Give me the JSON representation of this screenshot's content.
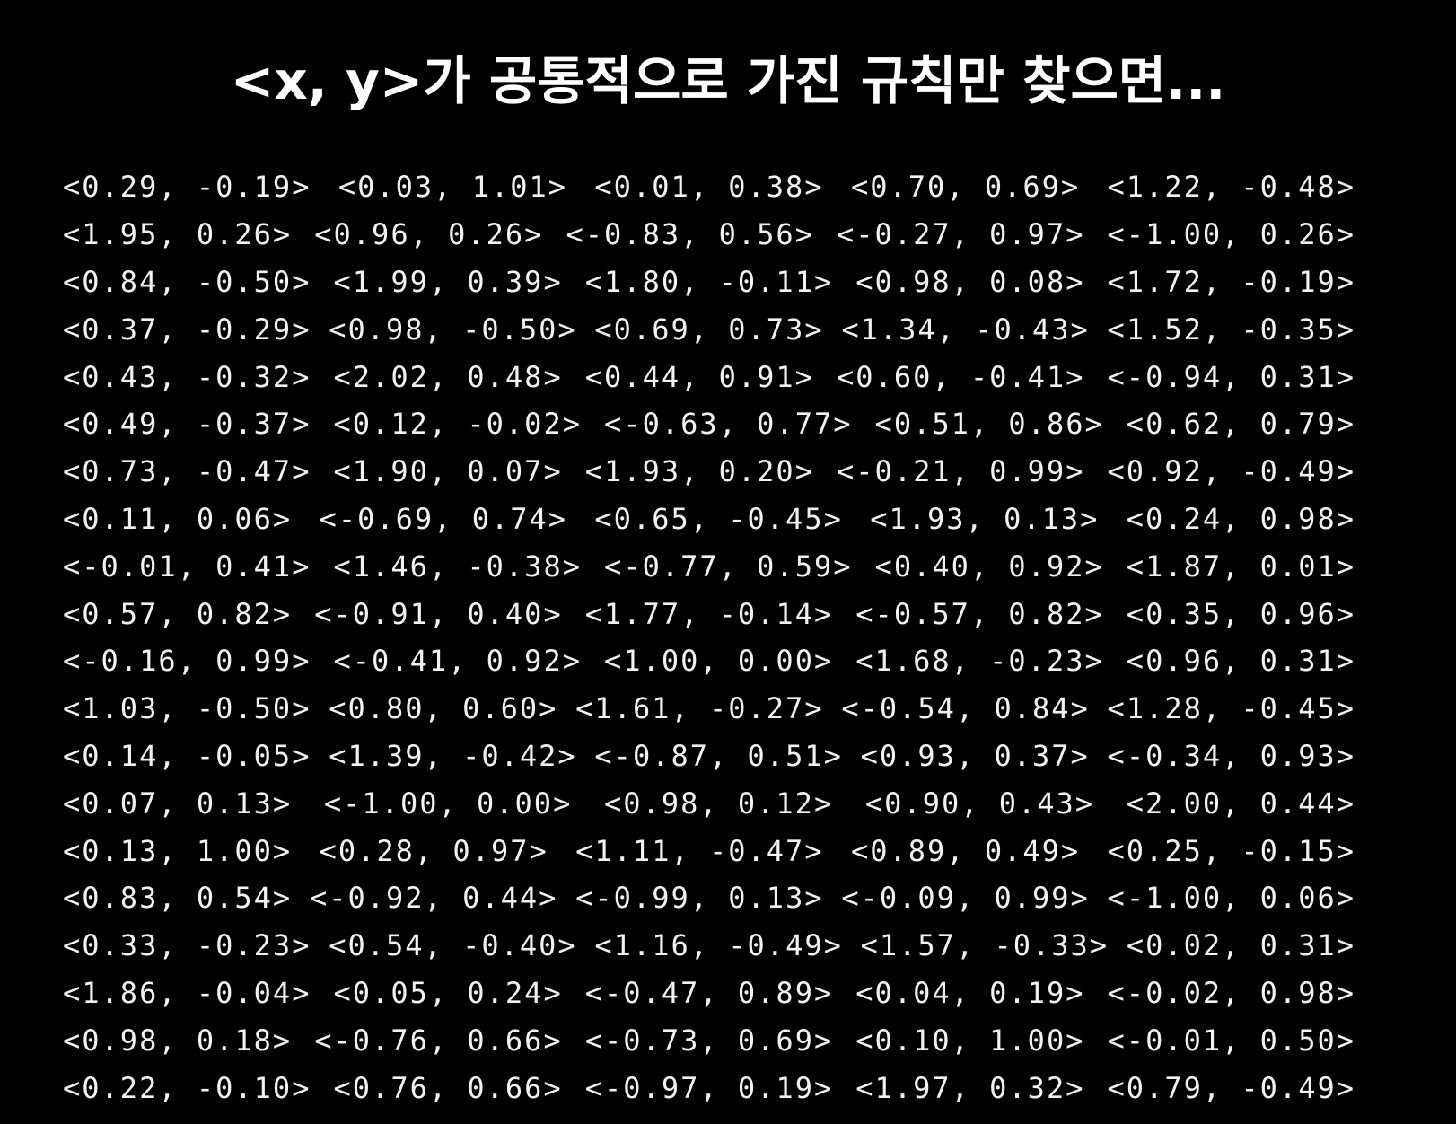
{
  "title": "<x, y>가 공통적으로 가진 규칙만 찾으면...",
  "rows": [
    [
      "<0.29, -0.19>",
      "<0.03, 1.01>",
      "<0.01, 0.38>",
      "<0.70, 0.69>",
      "<1.22, -0.48>"
    ],
    [
      "<1.95, 0.26>",
      "<0.96, 0.26>",
      "<-0.83, 0.56>",
      "<-0.27, 0.97>",
      "<-1.00, 0.26>"
    ],
    [
      "<0.84, -0.50>",
      "<1.99, 0.39>",
      "<1.80, -0.11>",
      "<0.98, 0.08>",
      "<1.72, -0.19>"
    ],
    [
      "<0.37, -0.29>",
      "<0.98, -0.50>",
      "<0.69, 0.73>",
      "<1.34, -0.43>",
      "<1.52, -0.35>"
    ],
    [
      "<0.43, -0.32>",
      "<2.02, 0.48>",
      "<0.44, 0.91>",
      "<0.60, -0.41>",
      "<-0.94, 0.31>"
    ],
    [
      "<0.49, -0.37>",
      "<0.12, -0.02>",
      "<-0.63, 0.77>",
      "<0.51, 0.86>",
      "<0.62, 0.79>"
    ],
    [
      "<0.73, -0.47>",
      "<1.90, 0.07>",
      "<1.93, 0.20>",
      "<-0.21, 0.99>",
      "<0.92, -0.49>"
    ],
    [
      "<0.11, 0.06>",
      "<-0.69, 0.74>",
      "<0.65, -0.45>",
      "<1.93, 0.13>",
      "<0.24, 0.98>"
    ],
    [
      "<-0.01, 0.41>",
      "<1.46, -0.38>",
      "<-0.77, 0.59>",
      "<0.40, 0.92>",
      "<1.87, 0.01>"
    ],
    [
      "<0.57, 0.82>",
      "<-0.91, 0.40>",
      "<1.77, -0.14>",
      "<-0.57, 0.82>",
      "<0.35, 0.96>"
    ],
    [
      "<-0.16, 0.99>",
      "<-0.41, 0.92>",
      "<1.00, 0.00>",
      "<1.68, -0.23>",
      "<0.96, 0.31>"
    ],
    [
      "<1.03, -0.50>",
      "<0.80, 0.60>",
      "<1.61, -0.27>",
      "<-0.54, 0.84>",
      "<1.28, -0.45>"
    ],
    [
      "<0.14, -0.05>",
      "<1.39, -0.42>",
      "<-0.87, 0.51>",
      "<0.93, 0.37>",
      "<-0.34, 0.93>"
    ],
    [
      "<0.07, 0.13>",
      "<-1.00, 0.00>",
      "<0.98, 0.12>",
      "<0.90, 0.43>",
      "<2.00, 0.44>"
    ],
    [
      "<0.13, 1.00>",
      "<0.28, 0.97>",
      "<1.11, -0.47>",
      "<0.89, 0.49>",
      "<0.25, -0.15>"
    ],
    [
      "<0.83, 0.54>",
      "<-0.92, 0.44>",
      "<-0.99, 0.13>",
      "<-0.09, 0.99>",
      "<-1.00, 0.06>"
    ],
    [
      "<0.33, -0.23>",
      "<0.54, -0.40>",
      "<1.16, -0.49>",
      "<1.57, -0.33>",
      "<0.02, 0.31>"
    ],
    [
      "<1.86, -0.04>",
      "<0.05, 0.24>",
      "<-0.47, 0.89>",
      "<0.04, 0.19>",
      "<-0.02, 0.98>"
    ],
    [
      "<0.98, 0.18>",
      "<-0.76, 0.66>",
      "<-0.73, 0.69>",
      "<0.10, 1.00>",
      "<-0.01, 0.50>"
    ],
    [
      "<0.22, -0.10>",
      "<0.76, 0.66>",
      "<-0.97, 0.19>",
      "<1.97, 0.32>",
      "<0.79, -0.49>"
    ]
  ]
}
